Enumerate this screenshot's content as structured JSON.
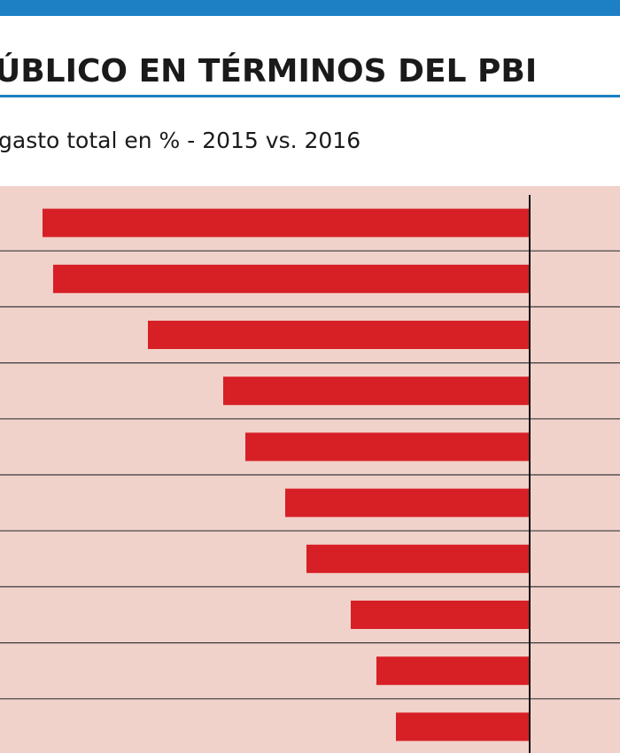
{
  "chart_data": {
    "type": "barh",
    "title": "ÚBLICO EN TÉRMINOS DEL PBI",
    "subtitle": "gasto total en % - 2015 vs. 2016",
    "categories": [
      null,
      null,
      null,
      null,
      null,
      null,
      null,
      null,
      null,
      null
    ],
    "values": [
      -5.5,
      -5.38,
      -4.31,
      -3.46,
      -3.21,
      -2.76,
      -2.52,
      -2.02,
      -1.73,
      -1.51
    ],
    "color": "#d71f26",
    "xlim": [
      -5.98,
      1.02
    ]
  }
}
